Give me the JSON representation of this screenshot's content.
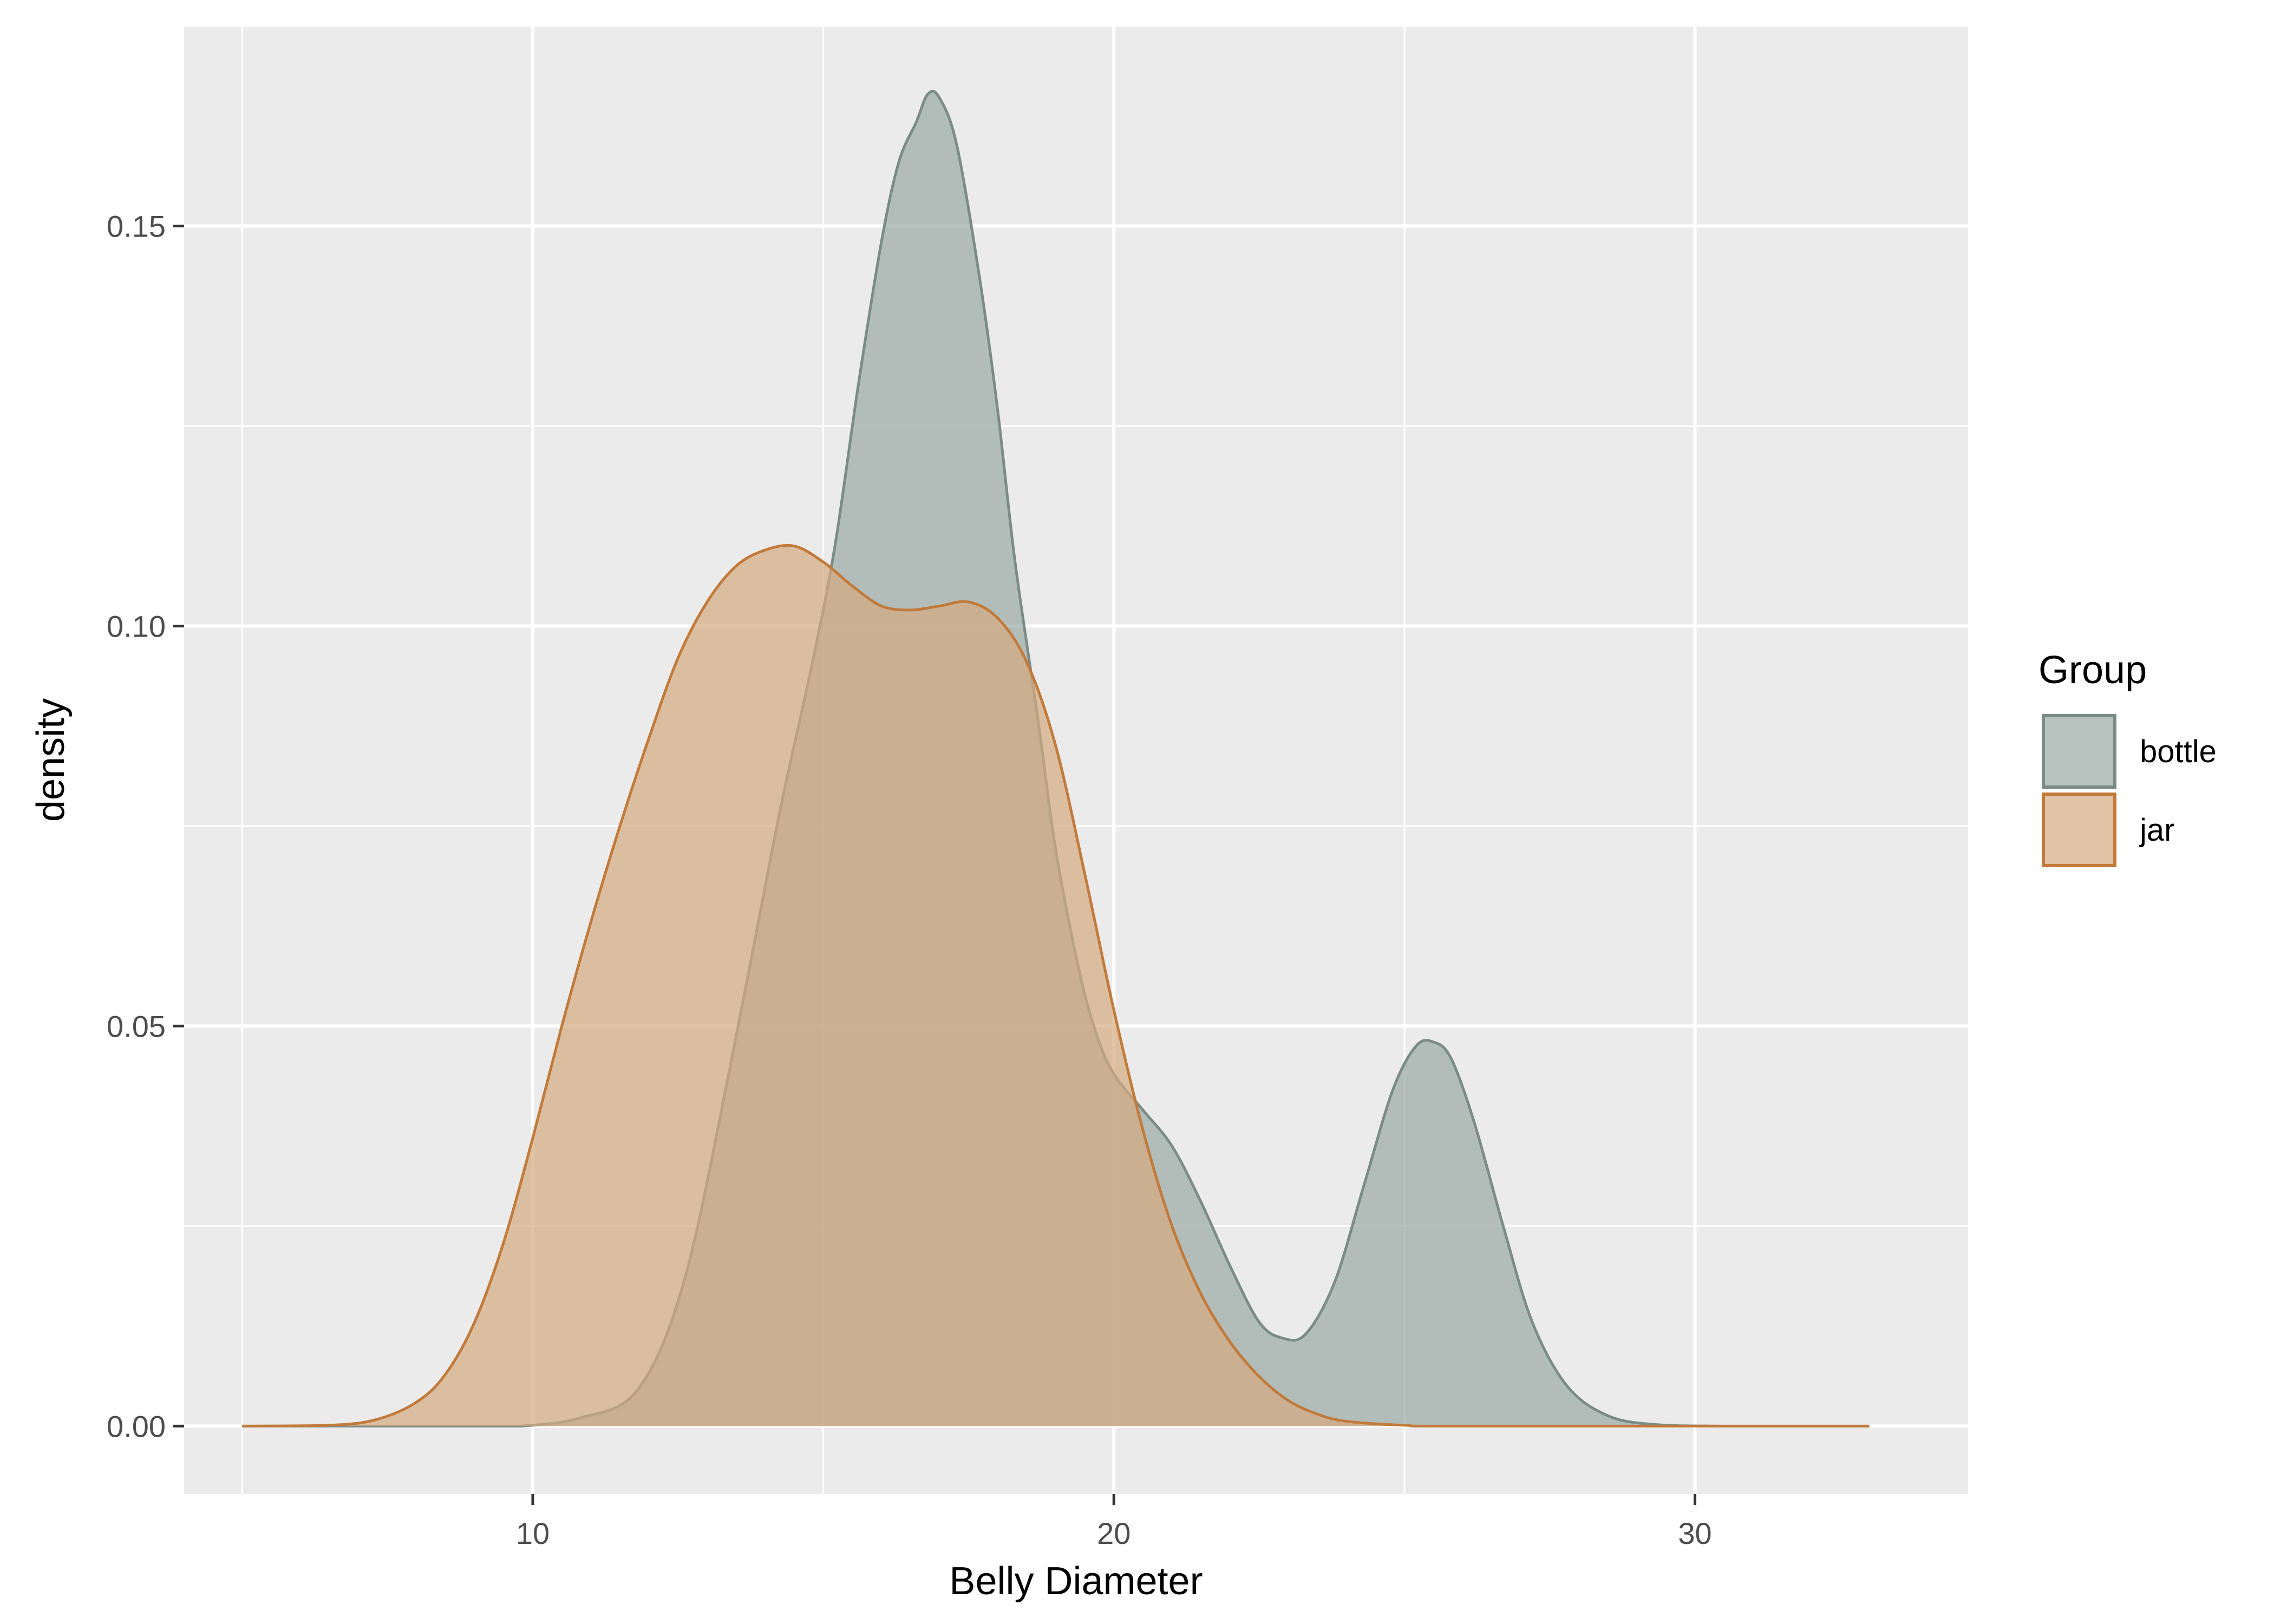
{
  "chart_data": {
    "type": "area",
    "title": "",
    "xlabel": "Belly Diameter",
    "ylabel": "density",
    "xlim": [
      4.0,
      34.7
    ],
    "ylim": [
      -0.0085,
      0.175
    ],
    "x_ticks": [
      10,
      20,
      30
    ],
    "y_ticks": [
      0.0,
      0.05,
      0.1,
      0.15
    ],
    "x_tick_labels": [
      "10",
      "20",
      "30"
    ],
    "y_tick_labels": [
      "0.00",
      "0.05",
      "0.10",
      "0.15"
    ],
    "grid": true,
    "legend": {
      "title": "Group",
      "position": "right"
    },
    "series": [
      {
        "name": "bottle",
        "fill": "#9aa9a4",
        "stroke": "#7a8c85",
        "points": [
          [
            5.0,
            0.0
          ],
          [
            8.0,
            0.0
          ],
          [
            9.0,
            0.0
          ],
          [
            9.8,
            0.0
          ],
          [
            10.8,
            0.001
          ],
          [
            11.8,
            0.0045
          ],
          [
            12.6,
            0.018
          ],
          [
            13.4,
            0.045
          ],
          [
            14.2,
            0.075
          ],
          [
            14.8,
            0.095
          ],
          [
            15.2,
            0.11
          ],
          [
            15.6,
            0.13
          ],
          [
            16.0,
            0.148
          ],
          [
            16.3,
            0.158
          ],
          [
            16.6,
            0.163
          ],
          [
            16.8,
            0.1665
          ],
          [
            17.0,
            0.166
          ],
          [
            17.3,
            0.16
          ],
          [
            17.7,
            0.143
          ],
          [
            18.0,
            0.127
          ],
          [
            18.3,
            0.108
          ],
          [
            18.7,
            0.088
          ],
          [
            19.0,
            0.072
          ],
          [
            19.4,
            0.057
          ],
          [
            19.7,
            0.049
          ],
          [
            20.0,
            0.044
          ],
          [
            20.5,
            0.0395
          ],
          [
            21.0,
            0.035
          ],
          [
            21.5,
            0.028
          ],
          [
            22.0,
            0.02
          ],
          [
            22.5,
            0.013
          ],
          [
            22.9,
            0.011
          ],
          [
            23.3,
            0.0115
          ],
          [
            23.8,
            0.018
          ],
          [
            24.3,
            0.03
          ],
          [
            24.8,
            0.042
          ],
          [
            25.2,
            0.0475
          ],
          [
            25.5,
            0.048
          ],
          [
            25.8,
            0.046
          ],
          [
            26.2,
            0.038
          ],
          [
            26.7,
            0.025
          ],
          [
            27.2,
            0.013
          ],
          [
            27.8,
            0.005
          ],
          [
            28.5,
            0.0013
          ],
          [
            29.3,
            0.0002
          ],
          [
            30.5,
            0.0
          ],
          [
            33.0,
            0.0
          ]
        ]
      },
      {
        "name": "jar",
        "fill": "#d4aa80",
        "stroke": "#c27a3a",
        "points": [
          [
            5.0,
            0.0
          ],
          [
            6.5,
            0.0001
          ],
          [
            7.3,
            0.0008
          ],
          [
            8.0,
            0.003
          ],
          [
            8.5,
            0.0065
          ],
          [
            9.0,
            0.013
          ],
          [
            9.5,
            0.023
          ],
          [
            10.0,
            0.036
          ],
          [
            10.5,
            0.05
          ],
          [
            11.0,
            0.063
          ],
          [
            11.5,
            0.075
          ],
          [
            12.0,
            0.086
          ],
          [
            12.5,
            0.096
          ],
          [
            13.0,
            0.103
          ],
          [
            13.5,
            0.1075
          ],
          [
            14.0,
            0.1095
          ],
          [
            14.5,
            0.11
          ],
          [
            15.0,
            0.108
          ],
          [
            15.5,
            0.105
          ],
          [
            16.0,
            0.1025
          ],
          [
            16.5,
            0.102
          ],
          [
            17.0,
            0.1025
          ],
          [
            17.5,
            0.103
          ],
          [
            18.0,
            0.101
          ],
          [
            18.5,
            0.0955
          ],
          [
            19.0,
            0.085
          ],
          [
            19.5,
            0.069
          ],
          [
            20.0,
            0.052
          ],
          [
            20.5,
            0.037
          ],
          [
            21.0,
            0.025
          ],
          [
            21.5,
            0.0165
          ],
          [
            22.0,
            0.0105
          ],
          [
            22.5,
            0.0062
          ],
          [
            23.0,
            0.0032
          ],
          [
            23.5,
            0.0015
          ],
          [
            24.0,
            0.0006
          ],
          [
            25.0,
            0.0001
          ],
          [
            26.0,
            0.0
          ],
          [
            33.0,
            0.0
          ]
        ]
      }
    ]
  }
}
